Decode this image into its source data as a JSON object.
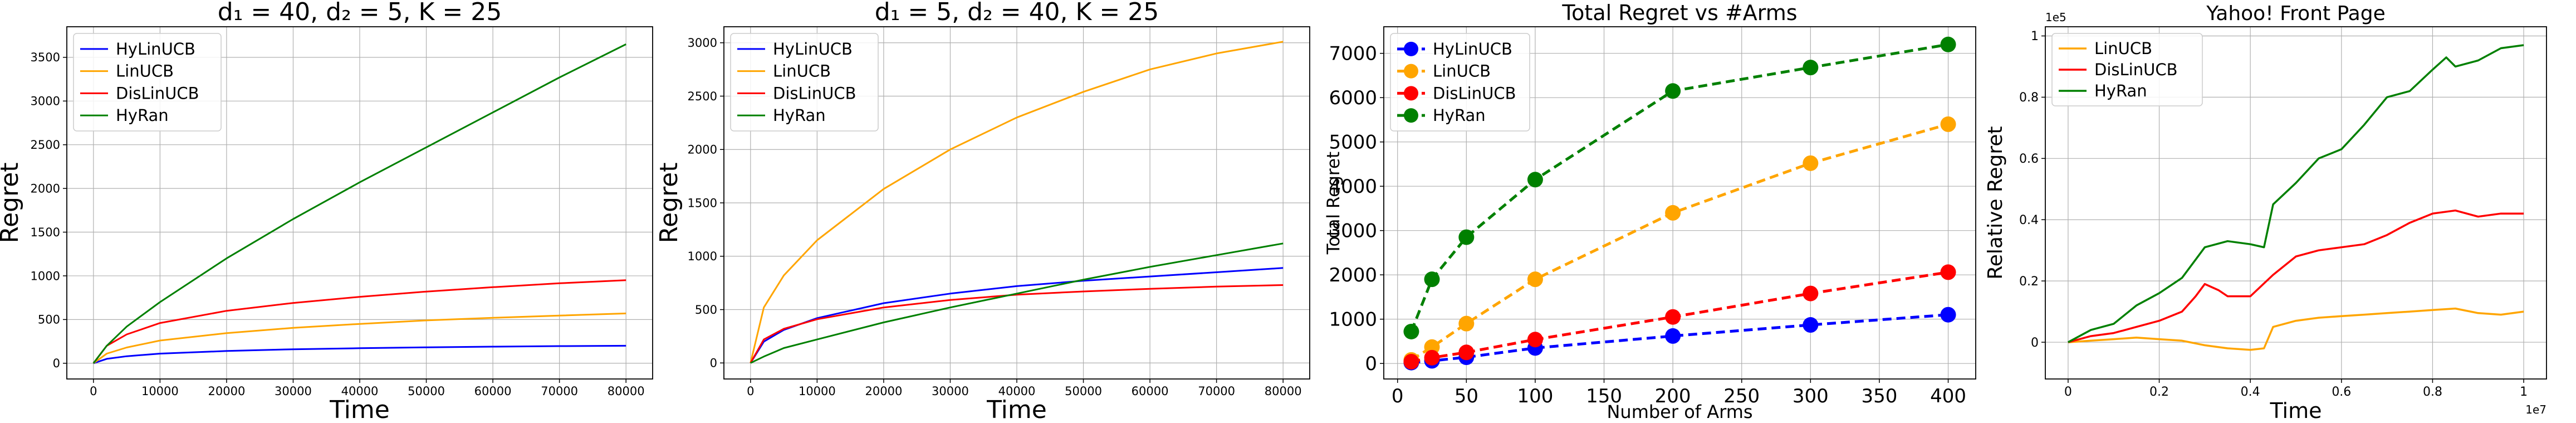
{
  "chart_data": [
    {
      "type": "line",
      "title": "d₁ = 40, d₂ = 5, K = 25",
      "xlabel": "Time",
      "ylabel": "Regret",
      "xlim": [
        -4000,
        84000
      ],
      "ylim": [
        -180,
        3850
      ],
      "xticks": [
        0,
        10000,
        20000,
        30000,
        40000,
        50000,
        60000,
        70000,
        80000
      ],
      "yticks": [
        0,
        500,
        1000,
        1500,
        2000,
        2500,
        3000,
        3500
      ],
      "grid": true,
      "legend_position": "upper-left",
      "series": [
        {
          "name": "HyLinUCB",
          "color": "#0000ff",
          "x": [
            0,
            2000,
            5000,
            10000,
            20000,
            30000,
            40000,
            50000,
            60000,
            70000,
            80000
          ],
          "y": [
            0,
            50,
            80,
            110,
            140,
            160,
            172,
            182,
            190,
            196,
            200
          ]
        },
        {
          "name": "LinUCB",
          "color": "#ffa500",
          "x": [
            0,
            2000,
            5000,
            10000,
            20000,
            30000,
            40000,
            50000,
            60000,
            70000,
            80000
          ],
          "y": [
            0,
            110,
            180,
            260,
            345,
            405,
            450,
            490,
            520,
            545,
            570
          ]
        },
        {
          "name": "DisLinUCB",
          "color": "#ff0000",
          "x": [
            0,
            2000,
            5000,
            10000,
            20000,
            30000,
            40000,
            50000,
            60000,
            70000,
            80000
          ],
          "y": [
            0,
            200,
            330,
            460,
            600,
            690,
            760,
            820,
            870,
            915,
            950
          ]
        },
        {
          "name": "HyRan",
          "color": "#008000",
          "x": [
            0,
            2000,
            5000,
            10000,
            20000,
            30000,
            40000,
            50000,
            60000,
            70000,
            80000
          ],
          "y": [
            0,
            200,
            420,
            700,
            1200,
            1650,
            2070,
            2470,
            2870,
            3270,
            3650
          ]
        }
      ]
    },
    {
      "type": "line",
      "title": "d₁ = 5, d₂ = 40, K = 25",
      "xlabel": "Time",
      "ylabel": "Regret",
      "xlim": [
        -4000,
        84000
      ],
      "ylim": [
        -150,
        3150
      ],
      "xticks": [
        0,
        10000,
        20000,
        30000,
        40000,
        50000,
        60000,
        70000,
        80000
      ],
      "yticks": [
        0,
        500,
        1000,
        1500,
        2000,
        2500,
        3000
      ],
      "grid": true,
      "legend_position": "upper-left",
      "series": [
        {
          "name": "HyLinUCB",
          "color": "#0000ff",
          "x": [
            0,
            2000,
            5000,
            10000,
            20000,
            30000,
            40000,
            50000,
            60000,
            70000,
            80000
          ],
          "y": [
            0,
            200,
            310,
            420,
            560,
            650,
            720,
            770,
            810,
            850,
            890
          ]
        },
        {
          "name": "LinUCB",
          "color": "#ffa500",
          "x": [
            0,
            2000,
            5000,
            10000,
            20000,
            30000,
            40000,
            50000,
            60000,
            70000,
            80000
          ],
          "y": [
            0,
            520,
            820,
            1150,
            1630,
            2000,
            2300,
            2540,
            2750,
            2900,
            3010
          ]
        },
        {
          "name": "DisLinUCB",
          "color": "#ff0000",
          "x": [
            0,
            2000,
            5000,
            10000,
            20000,
            30000,
            40000,
            50000,
            60000,
            70000,
            80000
          ],
          "y": [
            0,
            220,
            320,
            410,
            520,
            590,
            640,
            670,
            695,
            715,
            730
          ]
        },
        {
          "name": "HyRan",
          "color": "#008000",
          "x": [
            0,
            2000,
            5000,
            10000,
            20000,
            30000,
            40000,
            50000,
            60000,
            70000,
            80000
          ],
          "y": [
            0,
            60,
            140,
            220,
            380,
            520,
            650,
            780,
            900,
            1010,
            1120
          ]
        }
      ]
    },
    {
      "type": "line",
      "title": "Total Regret vs #Arms",
      "xlabel": "Number of Arms",
      "ylabel": "Total Regret",
      "xlim": [
        -10,
        420
      ],
      "ylim": [
        -350,
        7600
      ],
      "xticks": [
        0,
        50,
        100,
        150,
        200,
        250,
        300,
        350,
        400
      ],
      "yticks": [
        0,
        1000,
        2000,
        3000,
        4000,
        5000,
        6000,
        7000
      ],
      "grid": true,
      "legend_position": "upper-left",
      "series": [
        {
          "name": "HyLinUCB",
          "color": "#0000ff",
          "x": [
            10,
            25,
            50,
            100,
            200,
            300,
            400
          ],
          "y": [
            20,
            60,
            140,
            350,
            620,
            870,
            1100
          ]
        },
        {
          "name": "LinUCB",
          "color": "#ffa500",
          "x": [
            10,
            25,
            50,
            100,
            200,
            300,
            400
          ],
          "y": [
            80,
            370,
            900,
            1900,
            3400,
            4520,
            5400
          ]
        },
        {
          "name": "DisLinUCB",
          "color": "#ff0000",
          "x": [
            10,
            25,
            50,
            100,
            200,
            300,
            400
          ],
          "y": [
            40,
            130,
            250,
            540,
            1050,
            1580,
            2060
          ]
        },
        {
          "name": "HyRan",
          "color": "#008000",
          "x": [
            10,
            25,
            50,
            100,
            200,
            300,
            400
          ],
          "y": [
            720,
            1900,
            2850,
            4150,
            6150,
            6680,
            7200
          ]
        }
      ]
    },
    {
      "type": "line",
      "title": "Yahoo! Front Page",
      "xlabel": "Time",
      "ylabel": "Relative Regret",
      "x_multiplier": "1e7",
      "y_multiplier": "1e5",
      "xlim": [
        -0.05,
        1.05
      ],
      "ylim": [
        -0.12,
        1.03
      ],
      "xticks": [
        0.0,
        0.2,
        0.4,
        0.6,
        0.8,
        1.0
      ],
      "yticks": [
        0.0,
        0.2,
        0.4,
        0.6,
        0.8,
        1.0
      ],
      "grid": true,
      "legend_position": "upper-left",
      "series": [
        {
          "name": "LinUCB",
          "color": "#ffa500",
          "x": [
            0,
            0.05,
            0.1,
            0.15,
            0.2,
            0.25,
            0.3,
            0.35,
            0.4,
            0.43,
            0.45,
            0.5,
            0.55,
            0.6,
            0.65,
            0.7,
            0.75,
            0.8,
            0.85,
            0.9,
            0.95,
            1.0
          ],
          "y": [
            0,
            0.005,
            0.01,
            0.015,
            0.01,
            0.005,
            -0.01,
            -0.02,
            -0.025,
            -0.02,
            0.05,
            0.07,
            0.08,
            0.085,
            0.09,
            0.095,
            0.1,
            0.105,
            0.11,
            0.095,
            0.09,
            0.1
          ]
        },
        {
          "name": "DisLinUCB",
          "color": "#ff0000",
          "x": [
            0,
            0.05,
            0.1,
            0.15,
            0.2,
            0.25,
            0.28,
            0.3,
            0.33,
            0.35,
            0.4,
            0.45,
            0.5,
            0.55,
            0.6,
            0.65,
            0.7,
            0.75,
            0.8,
            0.85,
            0.9,
            0.95,
            1.0
          ],
          "y": [
            0,
            0.02,
            0.03,
            0.05,
            0.07,
            0.1,
            0.15,
            0.19,
            0.17,
            0.15,
            0.15,
            0.22,
            0.28,
            0.3,
            0.31,
            0.32,
            0.35,
            0.39,
            0.42,
            0.43,
            0.41,
            0.42,
            0.42
          ]
        },
        {
          "name": "HyRan",
          "color": "#008000",
          "x": [
            0,
            0.05,
            0.1,
            0.15,
            0.2,
            0.25,
            0.3,
            0.35,
            0.4,
            0.43,
            0.45,
            0.5,
            0.55,
            0.6,
            0.65,
            0.7,
            0.75,
            0.8,
            0.83,
            0.85,
            0.9,
            0.95,
            1.0
          ],
          "y": [
            0,
            0.04,
            0.06,
            0.12,
            0.16,
            0.21,
            0.31,
            0.33,
            0.32,
            0.31,
            0.45,
            0.52,
            0.6,
            0.63,
            0.71,
            0.8,
            0.82,
            0.89,
            0.93,
            0.9,
            0.92,
            0.96,
            0.97
          ]
        }
      ]
    }
  ]
}
